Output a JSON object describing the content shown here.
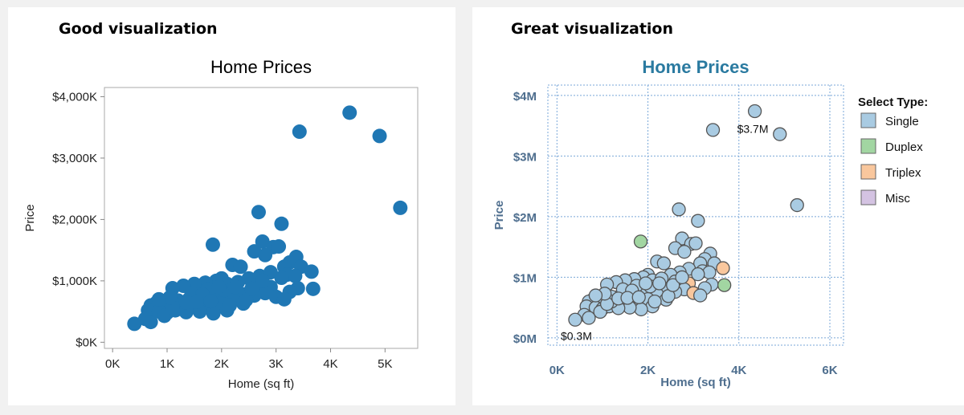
{
  "panels": {
    "left": {
      "heading": "Good visualization"
    },
    "right": {
      "heading": "Great visualization"
    }
  },
  "colors": {
    "left_marker": "#1f77b4",
    "right_title": "#2a7aa0",
    "right_axis_text": "#4e6e8e",
    "right_grid": "#7aa7d8",
    "type_single": "#a9cbe2",
    "type_duplex": "#a2d6a2",
    "type_triplex": "#f9c79d",
    "type_misc": "#d4c3e2"
  },
  "chart_data": [
    {
      "type": "scatter",
      "title": "Home Prices",
      "xlabel": "Home (sq ft)",
      "ylabel": "Price",
      "xlim": [
        -150,
        5600
      ],
      "ylim": [
        -100,
        4150
      ],
      "x_ticks": [
        0,
        1000,
        2000,
        3000,
        4000,
        5000
      ],
      "x_tick_labels": [
        "0K",
        "1K",
        "2K",
        "3K",
        "4K",
        "5K"
      ],
      "y_ticks": [
        0,
        1000,
        2000,
        3000,
        4000
      ],
      "y_tick_labels": [
        "$0K",
        "$1,000K",
        "$2,000K",
        "$3,000K",
        "$4,000K"
      ],
      "grid": false,
      "points": [
        [
          4350,
          3740
        ],
        [
          3430,
          3430
        ],
        [
          4900,
          3360
        ],
        [
          5280,
          2190
        ],
        [
          2680,
          2120
        ],
        [
          3100,
          1930
        ],
        [
          1840,
          1590
        ],
        [
          2750,
          1640
        ],
        [
          2950,
          1550
        ],
        [
          3050,
          1560
        ],
        [
          2600,
          1480
        ],
        [
          2800,
          1420
        ],
        [
          3370,
          1390
        ],
        [
          3250,
          1300
        ],
        [
          3150,
          1230
        ],
        [
          2200,
          1260
        ],
        [
          2350,
          1230
        ],
        [
          3460,
          1230
        ],
        [
          3650,
          1150
        ],
        [
          2900,
          1140
        ],
        [
          3200,
          1100
        ],
        [
          3350,
          1080
        ],
        [
          2700,
          1080
        ],
        [
          2500,
          1040
        ],
        [
          2000,
          1040
        ],
        [
          1900,
          1000
        ],
        [
          1700,
          970
        ],
        [
          1500,
          950
        ],
        [
          1300,
          920
        ],
        [
          1100,
          880
        ],
        [
          2100,
          950
        ],
        [
          2300,
          980
        ],
        [
          2600,
          930
        ],
        [
          2900,
          900
        ],
        [
          3400,
          880
        ],
        [
          3680,
          870
        ],
        [
          3250,
          820
        ],
        [
          2800,
          800
        ],
        [
          2400,
          780
        ],
        [
          2200,
          720
        ],
        [
          1900,
          730
        ],
        [
          1600,
          720
        ],
        [
          1400,
          700
        ],
        [
          1200,
          680
        ],
        [
          1000,
          650
        ],
        [
          800,
          640
        ],
        [
          900,
          590
        ],
        [
          750,
          560
        ],
        [
          700,
          600
        ],
        [
          650,
          520
        ],
        [
          850,
          500
        ],
        [
          1000,
          480
        ],
        [
          1150,
          520
        ],
        [
          1300,
          560
        ],
        [
          1500,
          600
        ],
        [
          1700,
          620
        ],
        [
          1850,
          560
        ],
        [
          2000,
          640
        ],
        [
          2100,
          520
        ],
        [
          2400,
          630
        ],
        [
          2600,
          760
        ],
        [
          3000,
          740
        ],
        [
          3150,
          700
        ],
        [
          2450,
          690
        ],
        [
          1850,
          470
        ],
        [
          1600,
          500
        ],
        [
          1350,
          490
        ],
        [
          1200,
          600
        ],
        [
          950,
          430
        ],
        [
          600,
          380
        ],
        [
          400,
          300
        ],
        [
          700,
          330
        ],
        [
          1100,
          560
        ],
        [
          1450,
          800
        ],
        [
          1750,
          860
        ],
        [
          2050,
          850
        ],
        [
          2250,
          900
        ],
        [
          1650,
          780
        ],
        [
          1350,
          650
        ],
        [
          1050,
          730
        ],
        [
          850,
          700
        ],
        [
          1550,
          660
        ],
        [
          1800,
          670
        ],
        [
          2150,
          600
        ],
        [
          2550,
          870
        ],
        [
          2750,
          1000
        ],
        [
          3100,
          1050
        ],
        [
          1950,
          900
        ]
      ]
    },
    {
      "type": "scatter",
      "title": "Home Prices",
      "xlabel": "Home (sq ft)",
      "ylabel": "Price",
      "xlim": [
        -200,
        6300
      ],
      "ylim": [
        -120,
        4170
      ],
      "x_ticks": [
        0,
        2000,
        4000,
        6000
      ],
      "x_tick_labels": [
        "0K",
        "2K",
        "4K",
        "6K"
      ],
      "y_ticks": [
        0,
        1000,
        2000,
        3000,
        4000
      ],
      "y_tick_labels": [
        "$0M",
        "$1M",
        "$2M",
        "$3M",
        "$4M"
      ],
      "grid": true,
      "legend": {
        "title": "Select Type:",
        "position": "right",
        "items": [
          "Single",
          "Duplex",
          "Triplex",
          "Misc"
        ]
      },
      "annotations": [
        {
          "text": "$3.7M",
          "x": 4350,
          "y": 3740
        },
        {
          "text": "$0.3M",
          "x": 400,
          "y": 300
        }
      ],
      "points": [
        [
          4350,
          3740,
          "Single"
        ],
        [
          3430,
          3430,
          "Single"
        ],
        [
          4900,
          3360,
          "Single"
        ],
        [
          5280,
          2190,
          "Single"
        ],
        [
          2680,
          2120,
          "Single"
        ],
        [
          3100,
          1930,
          "Single"
        ],
        [
          1840,
          1590,
          "Duplex"
        ],
        [
          2750,
          1640,
          "Single"
        ],
        [
          2950,
          1550,
          "Single"
        ],
        [
          3050,
          1560,
          "Single"
        ],
        [
          2600,
          1480,
          "Single"
        ],
        [
          2800,
          1420,
          "Single"
        ],
        [
          3370,
          1390,
          "Single"
        ],
        [
          3250,
          1300,
          "Single"
        ],
        [
          3150,
          1230,
          "Single"
        ],
        [
          2200,
          1260,
          "Single"
        ],
        [
          2350,
          1230,
          "Single"
        ],
        [
          3460,
          1230,
          "Single"
        ],
        [
          3650,
          1150,
          "Triplex"
        ],
        [
          2900,
          1140,
          "Single"
        ],
        [
          3200,
          1100,
          "Single"
        ],
        [
          3350,
          1080,
          "Single"
        ],
        [
          2700,
          1080,
          "Single"
        ],
        [
          2500,
          1040,
          "Single"
        ],
        [
          2000,
          1040,
          "Single"
        ],
        [
          1900,
          1000,
          "Single"
        ],
        [
          1700,
          970,
          "Single"
        ],
        [
          1500,
          950,
          "Single"
        ],
        [
          1300,
          920,
          "Single"
        ],
        [
          1100,
          880,
          "Single"
        ],
        [
          2100,
          950,
          "Single"
        ],
        [
          2300,
          980,
          "Single"
        ],
        [
          2600,
          930,
          "Single"
        ],
        [
          2900,
          900,
          "Triplex"
        ],
        [
          3400,
          880,
          "Single"
        ],
        [
          3680,
          870,
          "Duplex"
        ],
        [
          3250,
          820,
          "Single"
        ],
        [
          2800,
          800,
          "Single"
        ],
        [
          2400,
          780,
          "Single"
        ],
        [
          2200,
          720,
          "Single"
        ],
        [
          1900,
          730,
          "Single"
        ],
        [
          1600,
          720,
          "Single"
        ],
        [
          1400,
          700,
          "Single"
        ],
        [
          1200,
          680,
          "Single"
        ],
        [
          1000,
          650,
          "Single"
        ],
        [
          800,
          640,
          "Single"
        ],
        [
          900,
          590,
          "Single"
        ],
        [
          750,
          560,
          "Single"
        ],
        [
          700,
          600,
          "Single"
        ],
        [
          650,
          520,
          "Single"
        ],
        [
          850,
          500,
          "Single"
        ],
        [
          1000,
          480,
          "Single"
        ],
        [
          1150,
          520,
          "Single"
        ],
        [
          1300,
          560,
          "Single"
        ],
        [
          1500,
          600,
          "Single"
        ],
        [
          1700,
          620,
          "Single"
        ],
        [
          1850,
          560,
          "Single"
        ],
        [
          2000,
          640,
          "Single"
        ],
        [
          2100,
          520,
          "Single"
        ],
        [
          2400,
          630,
          "Single"
        ],
        [
          2600,
          760,
          "Single"
        ],
        [
          3000,
          740,
          "Triplex"
        ],
        [
          3150,
          700,
          "Single"
        ],
        [
          2450,
          690,
          "Single"
        ],
        [
          1850,
          470,
          "Single"
        ],
        [
          1600,
          500,
          "Single"
        ],
        [
          1350,
          490,
          "Single"
        ],
        [
          1200,
          600,
          "Single"
        ],
        [
          950,
          430,
          "Single"
        ],
        [
          600,
          380,
          "Single"
        ],
        [
          400,
          300,
          "Single"
        ],
        [
          700,
          330,
          "Single"
        ],
        [
          1100,
          560,
          "Single"
        ],
        [
          1450,
          800,
          "Single"
        ],
        [
          1750,
          860,
          "Single"
        ],
        [
          2050,
          850,
          "Single"
        ],
        [
          2250,
          900,
          "Single"
        ],
        [
          1650,
          780,
          "Single"
        ],
        [
          1350,
          650,
          "Single"
        ],
        [
          1050,
          730,
          "Single"
        ],
        [
          850,
          700,
          "Single"
        ],
        [
          1550,
          660,
          "Single"
        ],
        [
          1800,
          670,
          "Single"
        ],
        [
          2150,
          600,
          "Single"
        ],
        [
          2550,
          870,
          "Single"
        ],
        [
          2750,
          1000,
          "Single"
        ],
        [
          3100,
          1050,
          "Single"
        ],
        [
          1950,
          900,
          "Single"
        ]
      ]
    }
  ]
}
